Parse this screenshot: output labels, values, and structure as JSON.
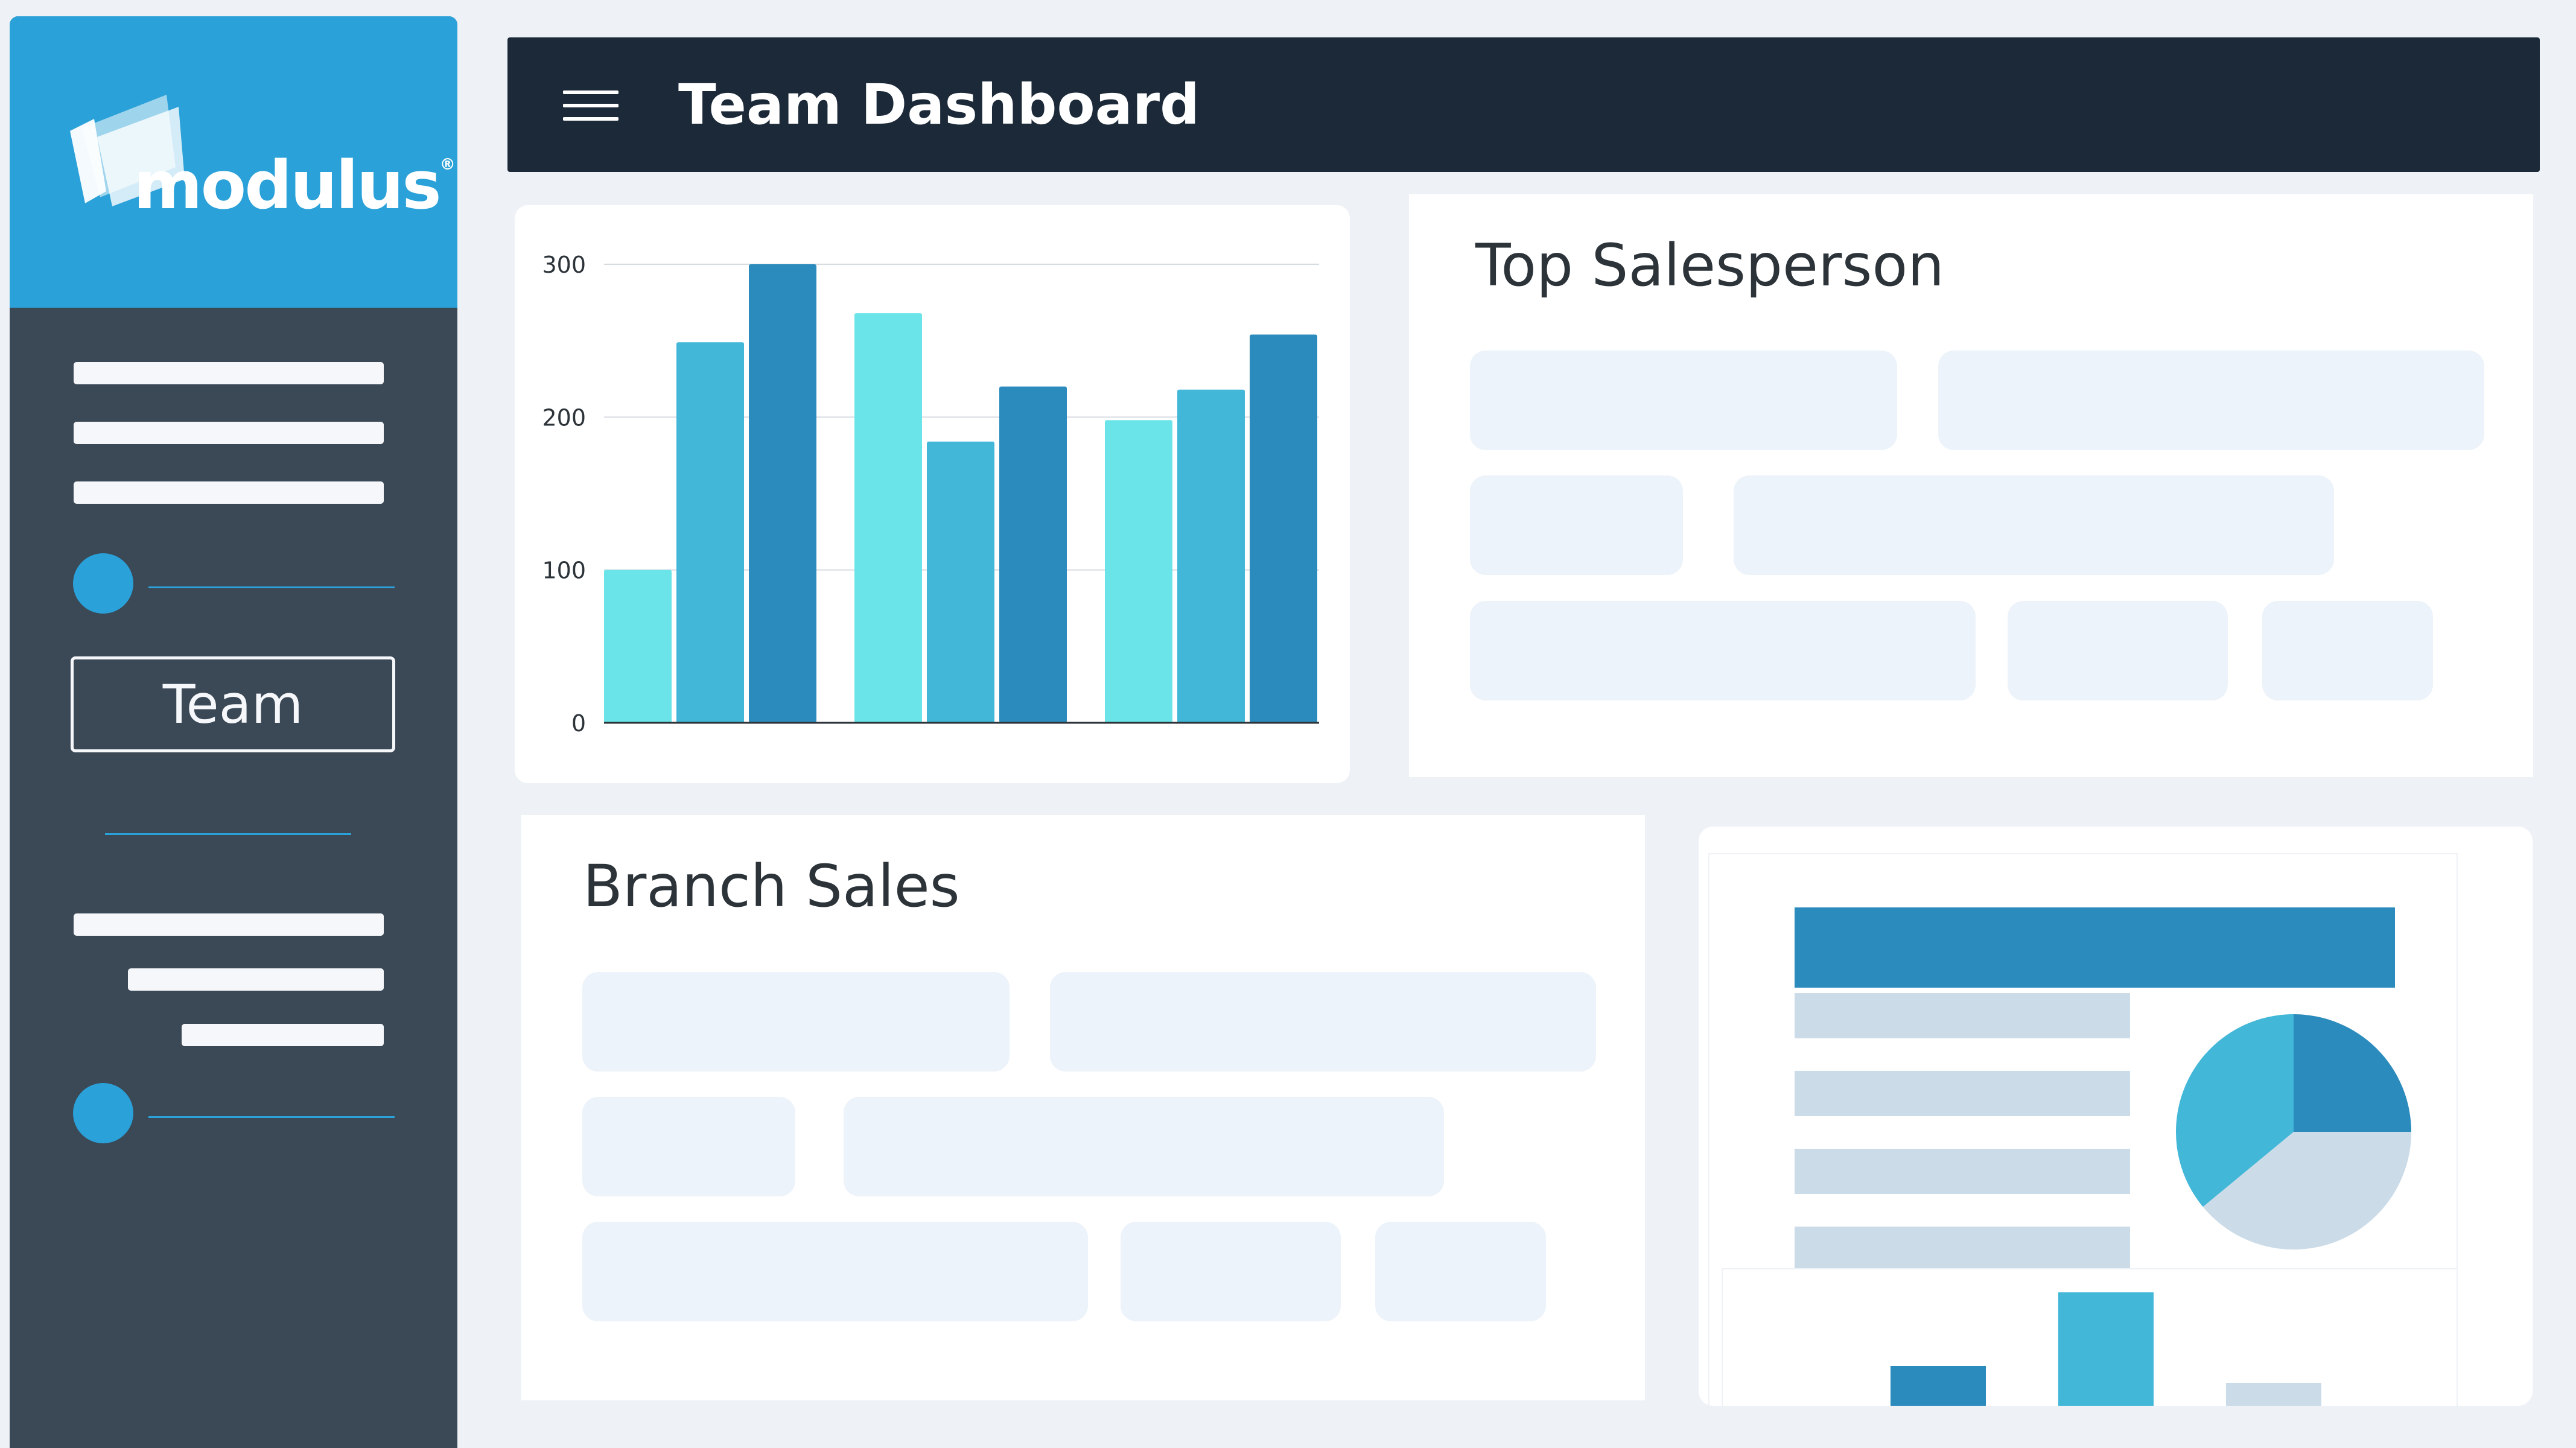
{
  "app": {
    "logo_text": "modulus",
    "logo_mark": "®"
  },
  "sidebar": {
    "team_button_label": "Team"
  },
  "header": {
    "menu_icon": "hamburger-icon",
    "title": "Team Dashboard"
  },
  "top_salesperson": {
    "title": "Top Salesperson"
  },
  "branch_sales": {
    "title": "Branch Sales"
  },
  "colors": {
    "sidebar": "#3b4856",
    "accent": "#2aa1d8",
    "header": "#1b2938",
    "series_light": "#6ae4e8",
    "series_mid": "#42b7d8",
    "series_dark": "#2b8bbd",
    "pie_light": "#cbdbe8"
  },
  "chart_data": [
    {
      "type": "bar",
      "ylim": [
        0,
        300
      ],
      "yticks": [
        "0",
        "100",
        "200",
        "300"
      ],
      "grid": true,
      "groups": 3,
      "series": [
        {
          "color": "#6ae4e8",
          "values": [
            100,
            268,
            198
          ]
        },
        {
          "color": "#42b7d8",
          "values": [
            249,
            184,
            218
          ]
        },
        {
          "color": "#2b8bbd",
          "values": [
            300,
            220,
            254
          ]
        }
      ]
    },
    {
      "type": "pie",
      "slices": [
        {
          "color": "#2b8bbd",
          "value": 25
        },
        {
          "color": "#cbdbe8",
          "value": 39
        },
        {
          "color": "#42b7d8",
          "value": 36
        }
      ]
    },
    {
      "type": "bar",
      "series": [
        {
          "color": "#2b8bbd",
          "value": 35
        },
        {
          "color": "#42b7d8",
          "value": 100
        },
        {
          "color": "#cbdbe8",
          "value": 20
        }
      ]
    }
  ]
}
